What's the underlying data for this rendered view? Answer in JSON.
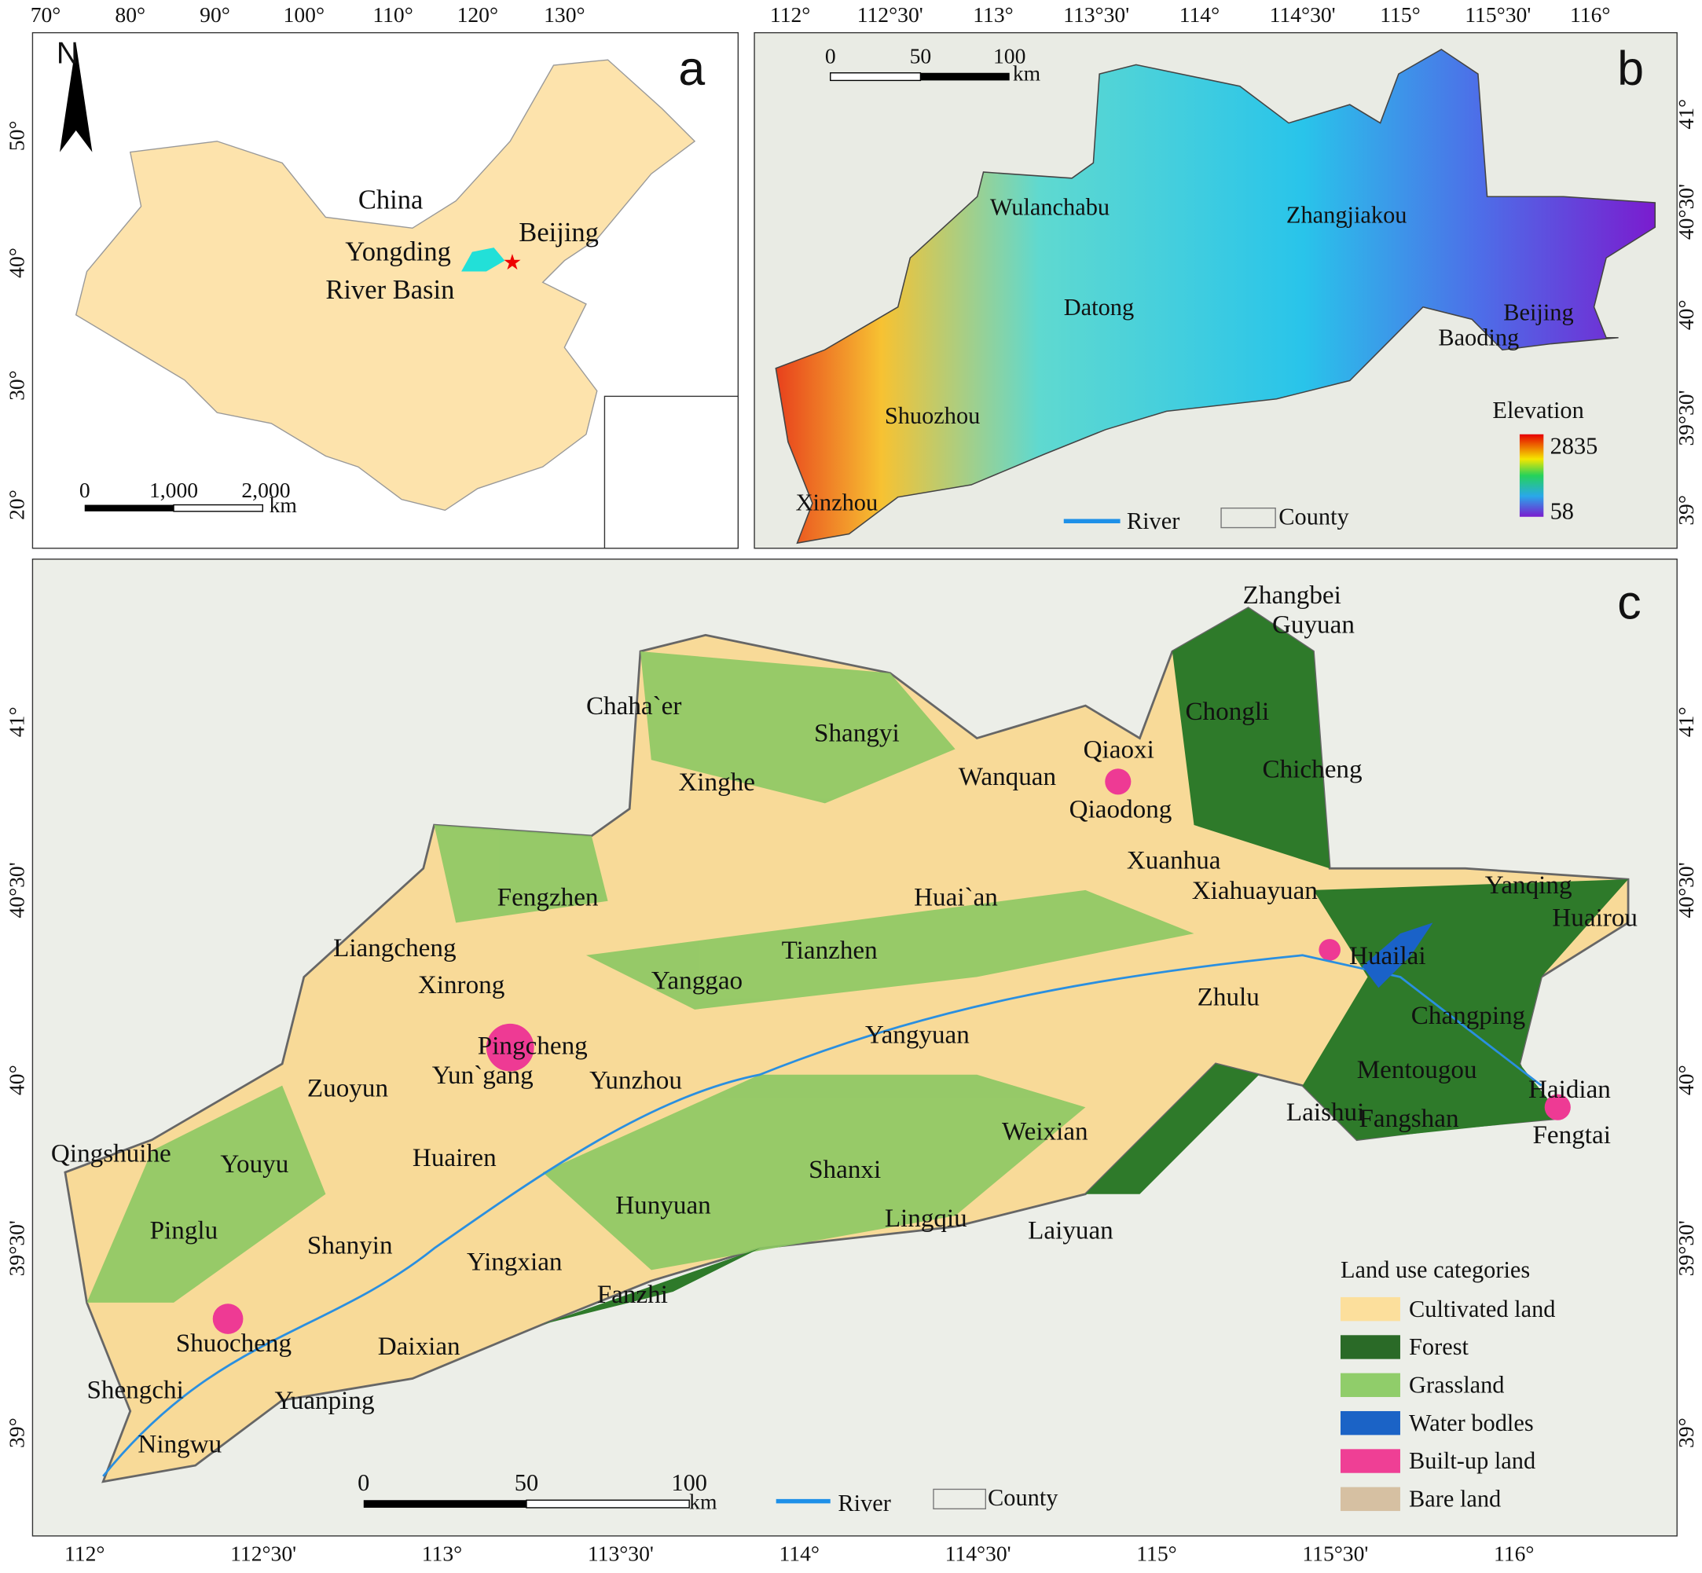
{
  "panel_a": {
    "label": "a",
    "lon_ticks": [
      "70°",
      "80°",
      "90°",
      "100°",
      "110°",
      "120°",
      "130°"
    ],
    "lat_ticks": [
      "50°",
      "40°",
      "30°",
      "20°"
    ],
    "north": "N",
    "places": [
      "China",
      "Beijing",
      "Yongding",
      "River Basin"
    ],
    "scale": [
      "0",
      "1,000",
      "2,000"
    ],
    "scale_unit": "km"
  },
  "panel_b": {
    "label": "b",
    "lon_ticks": [
      "112°",
      "112°30'",
      "113°",
      "113°30'",
      "114°",
      "114°30'",
      "115°",
      "115°30'",
      "116°"
    ],
    "lat_ticks": [
      "41°",
      "40°30'",
      "40°",
      "39°30'",
      "39°"
    ],
    "places": [
      "Wulanchabu",
      "Zhangjiakou",
      "Datong",
      "Beijing",
      "Baoding",
      "Shuozhou",
      "Xinzhou"
    ],
    "scale": [
      "0",
      "50",
      "100"
    ],
    "scale_unit": "km",
    "legend": {
      "river": "River",
      "county": "County"
    },
    "elevation": {
      "title": "Elevation",
      "max": "2835",
      "min": "58"
    }
  },
  "panel_c": {
    "label": "c",
    "lon_ticks": [
      "112°",
      "112°30'",
      "113°",
      "113°30'",
      "114°",
      "114°30'",
      "115°",
      "115°30'",
      "116°"
    ],
    "lat_ticks": [
      "41°",
      "40°30'",
      "40°",
      "39°30'",
      "39°"
    ],
    "places": [
      "Zhangbei",
      "Guyuan",
      "Chaha`er",
      "Chongli",
      "Shangyi",
      "Qiaoxi",
      "Xinghe",
      "Wanquan",
      "Chicheng",
      "Qiaodong",
      "Xuanhua",
      "Yanqing",
      "Fengzhen",
      "Huai`an",
      "Xiahuayuan",
      "Huairou",
      "Liangcheng",
      "Tianzhen",
      "Huailai",
      "Xinrong",
      "Yanggao",
      "Zhulu",
      "Changping",
      "Pingcheng",
      "Yangyuan",
      "Yun`gang",
      "Yunzhou",
      "Mentougou",
      "Zuoyun",
      "Haidian",
      "Laishui",
      "Fangshan",
      "Weixian",
      "Fengtai",
      "Qingshuihe",
      "Huairen",
      "Youyu",
      "Shanxi",
      "Hunyuan",
      "Lingqiu",
      "Laiyuan",
      "Pinglu",
      "Shanyin",
      "Yingxian",
      "Fanzhi",
      "Shuocheng",
      "Daixian",
      "Shengchi",
      "Yuanping",
      "Ningwu"
    ],
    "scale": [
      "0",
      "50",
      "100"
    ],
    "scale_unit": "km",
    "legend": {
      "river": "River",
      "county": "County"
    },
    "land_use": {
      "title": "Land use categories",
      "categories": [
        "Cultivated land",
        "Forest",
        "Grassland",
        "Water bodles",
        "Built-up land",
        "Bare land"
      ]
    }
  }
}
